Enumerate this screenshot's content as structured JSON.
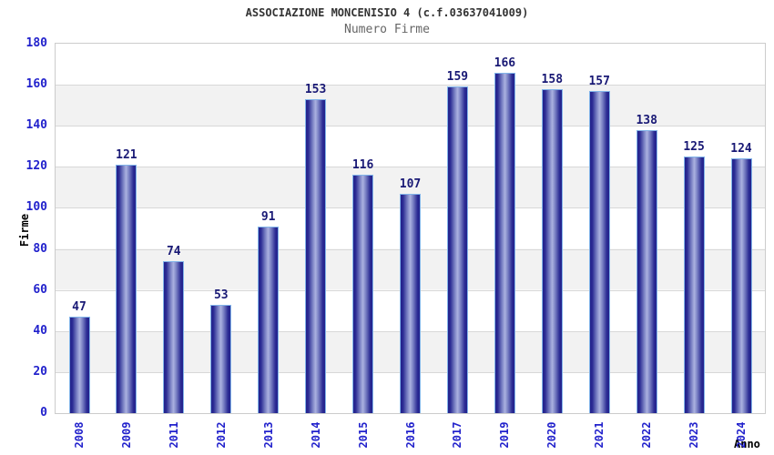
{
  "header": {
    "title": "ASSOCIAZIONE MONCENISIO 4 (c.f.03637041009)",
    "subtitle": "Numero Firme"
  },
  "chart_data": {
    "type": "bar",
    "title": "ASSOCIAZIONE MONCENISIO 4 (c.f.03637041009)",
    "subtitle": "Numero Firme",
    "xlabel": "Anno",
    "ylabel": "Firme",
    "categories": [
      "2008",
      "2009",
      "2011",
      "2012",
      "2013",
      "2014",
      "2015",
      "2016",
      "2017",
      "2019",
      "2020",
      "2021",
      "2022",
      "2023",
      "2024"
    ],
    "values": [
      47,
      121,
      74,
      53,
      91,
      153,
      116,
      107,
      159,
      166,
      158,
      157,
      138,
      125,
      124
    ],
    "ylim": [
      0,
      180
    ],
    "ytick_step": 20,
    "grid": true,
    "legend_position": "none",
    "value_labels_shown": true,
    "colors": {
      "tick_label": "#2222cc",
      "value_label": "#191975",
      "title": "#333333",
      "subtitle": "#666666",
      "axis_title": "#000000",
      "bar_edge": "#23238c",
      "bar_center": "#abb2e0",
      "bar_border": "#82b4e9",
      "band_gray": "#f2f2f2",
      "band_white": "#ffffff",
      "gridline": "#d8d8d8",
      "plot_border": "#cccccc"
    }
  }
}
